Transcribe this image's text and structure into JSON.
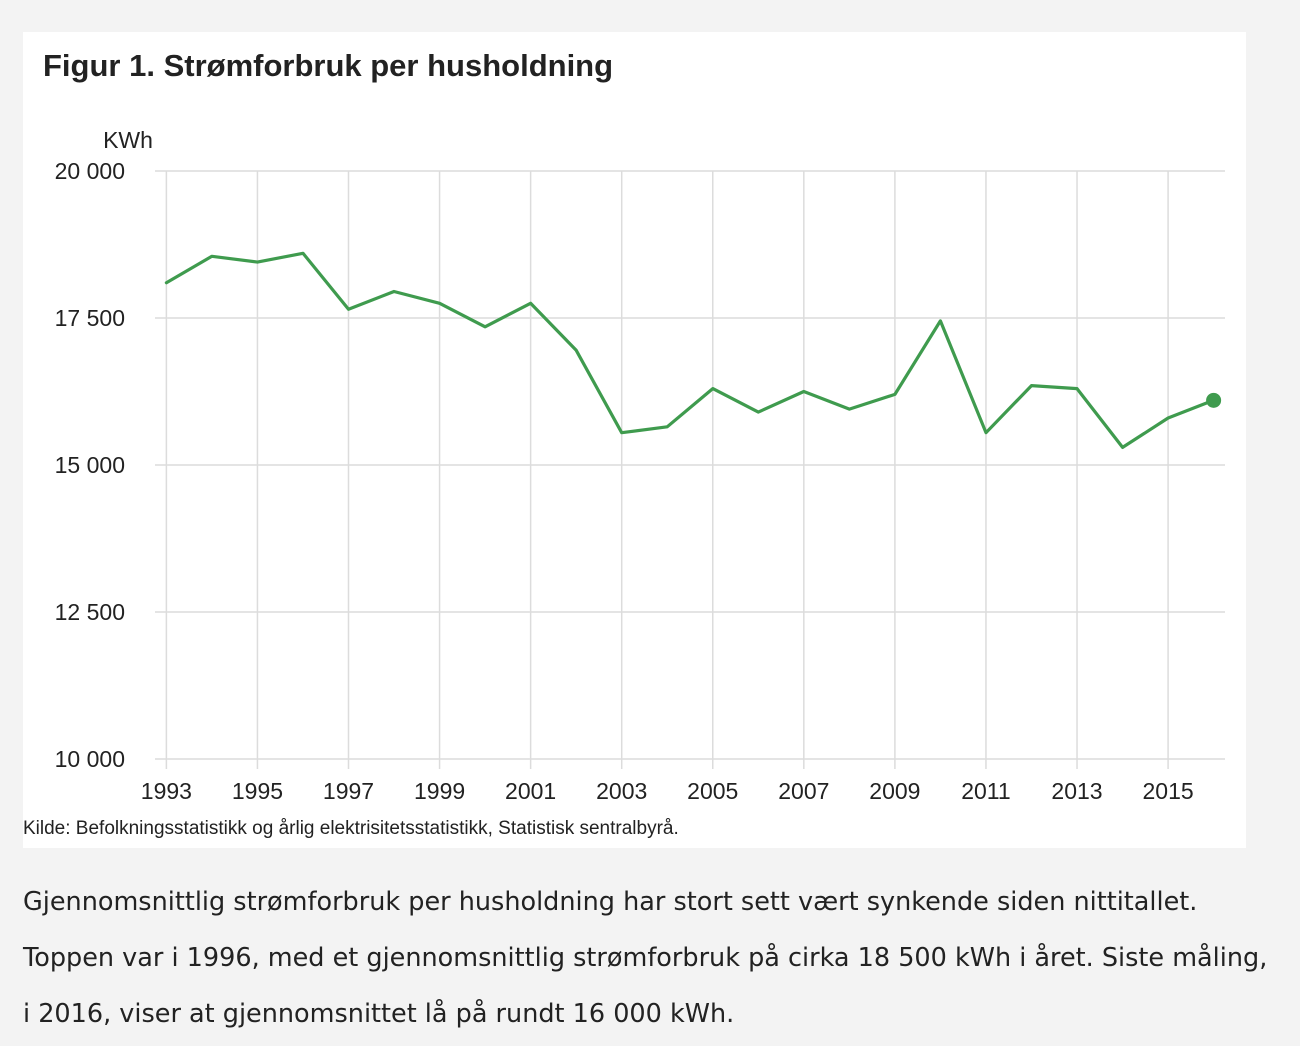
{
  "figure": {
    "title": "Figur 1. Strømforbruk per husholdning",
    "source": "Kilde: Befolkningsstatistikk og årlig elektrisitetsstatistikk, Statistisk sentralbyrå."
  },
  "chart_data": {
    "type": "line",
    "title": "Figur 1. Strømforbruk per husholdning",
    "ylabel": "KWh",
    "xlabel": "",
    "ylim": [
      10000,
      20000
    ],
    "y_ticks": [
      20000,
      17500,
      15000,
      12500,
      10000
    ],
    "y_tick_labels": [
      "20 000",
      "17 500",
      "15 000",
      "12 500",
      "10 000"
    ],
    "x_ticks": [
      1993,
      1995,
      1997,
      1999,
      2001,
      2003,
      2005,
      2007,
      2009,
      2011,
      2013,
      2015
    ],
    "x_tick_labels": [
      "1993",
      "1995",
      "1997",
      "1999",
      "2001",
      "2003",
      "2005",
      "2007",
      "2009",
      "2011",
      "2013",
      "2015"
    ],
    "grid": true,
    "line_color": "#3f9b4e",
    "end_marker": true,
    "x": [
      1993,
      1994,
      1995,
      1996,
      1997,
      1998,
      1999,
      2000,
      2001,
      2002,
      2003,
      2004,
      2005,
      2006,
      2007,
      2008,
      2009,
      2010,
      2011,
      2012,
      2013,
      2014,
      2015,
      2016
    ],
    "y": [
      18100,
      18550,
      18450,
      18600,
      17650,
      17950,
      17750,
      17350,
      17750,
      16950,
      15550,
      15650,
      16300,
      15900,
      16250,
      15950,
      16200,
      17450,
      15550,
      16350,
      16300,
      15300,
      15800,
      16100
    ]
  },
  "text": {
    "paragraph": "Gjennomsnittlig strømforbruk per husholdning har stort sett vært synkende siden nittitallet. Toppen var i 1996, med et gjennomsnittlig strømforbruk på cirka 18 500 kWh i året. Siste måling, i 2016, viser at gjennomsnittet lå på rundt 16 000 kWh."
  }
}
